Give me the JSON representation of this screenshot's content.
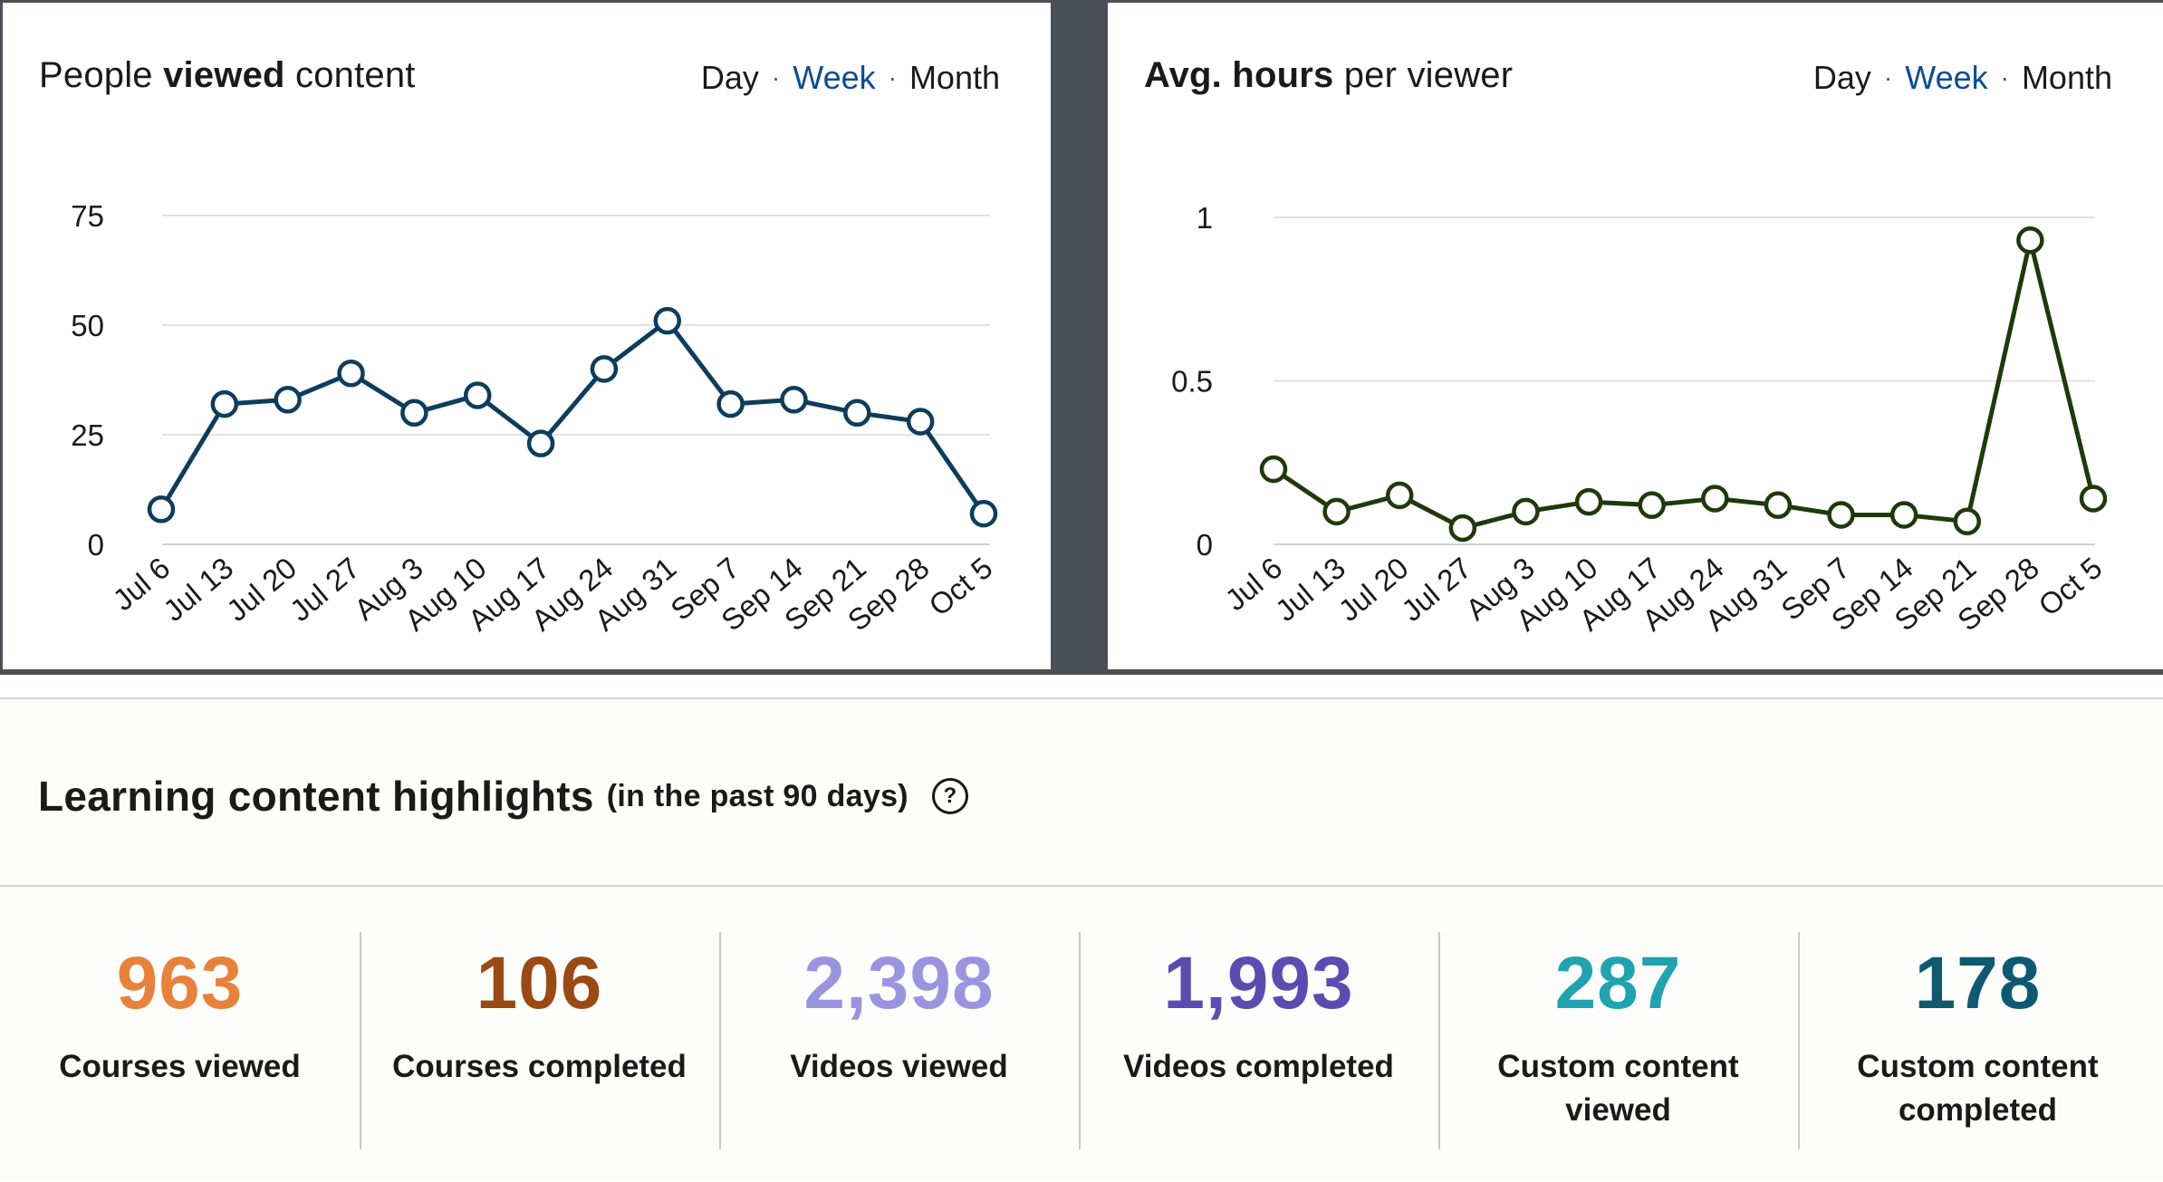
{
  "left_card": {
    "title_pre": "People ",
    "title_bold": "viewed",
    "title_post": " content",
    "period": {
      "day": "Day",
      "week": "Week",
      "month": "Month",
      "selected": "Week"
    }
  },
  "right_card": {
    "title_pre": "",
    "title_bold": "Avg. hours",
    "title_post": " per viewer",
    "period": {
      "day": "Day",
      "week": "Week",
      "month": "Month",
      "selected": "Week"
    }
  },
  "chart_data": [
    {
      "type": "line",
      "title": "People viewed content",
      "categories": [
        "Jul 6",
        "Jul 13",
        "Jul 20",
        "Jul 27",
        "Aug 3",
        "Aug 10",
        "Aug 17",
        "Aug 24",
        "Aug 31",
        "Sep 7",
        "Sep 14",
        "Sep 21",
        "Sep 28",
        "Oct 5"
      ],
      "values": [
        8,
        32,
        33,
        39,
        30,
        34,
        23,
        40,
        51,
        32,
        33,
        30,
        28,
        7
      ],
      "yticks": [
        0,
        25,
        50,
        75
      ],
      "ytick_labels": [
        "0",
        "25",
        "50",
        "75"
      ],
      "ylim": [
        0,
        75
      ],
      "color": "#0d3d5c",
      "xlabel": "",
      "ylabel": ""
    },
    {
      "type": "line",
      "title": "Avg. hours per viewer",
      "categories": [
        "Jul 6",
        "Jul 13",
        "Jul 20",
        "Jul 27",
        "Aug 3",
        "Aug 10",
        "Aug 17",
        "Aug 24",
        "Aug 31",
        "Sep 7",
        "Sep 14",
        "Sep 21",
        "Sep 28",
        "Oct 5"
      ],
      "values": [
        0.23,
        0.1,
        0.15,
        0.05,
        0.1,
        0.13,
        0.12,
        0.14,
        0.12,
        0.09,
        0.09,
        0.07,
        0.93,
        0.14
      ],
      "yticks": [
        0,
        0.5,
        1
      ],
      "ytick_labels": [
        "0",
        "0.5",
        "1"
      ],
      "ylim": [
        0,
        1
      ],
      "color": "#1e3a0a",
      "xlabel": "",
      "ylabel": ""
    }
  ],
  "highlights": {
    "title": "Learning content highlights",
    "subtitle": "(in the past 90 days)",
    "help_icon": "question-circle-icon",
    "help_glyph": "?",
    "stats": [
      {
        "value": "963",
        "label": "Courses viewed",
        "color": "#e8823a"
      },
      {
        "value": "106",
        "label": "Courses completed",
        "color": "#9a4a12"
      },
      {
        "value": "2,398",
        "label": "Videos viewed",
        "color": "#9a94e0"
      },
      {
        "value": "1,993",
        "label": "Videos completed",
        "color": "#5a4cb0"
      },
      {
        "value": "287",
        "label": "Custom content viewed",
        "color": "#1fa3b0"
      },
      {
        "value": "178",
        "label": "Custom content completed",
        "color": "#0f5a70"
      }
    ]
  }
}
